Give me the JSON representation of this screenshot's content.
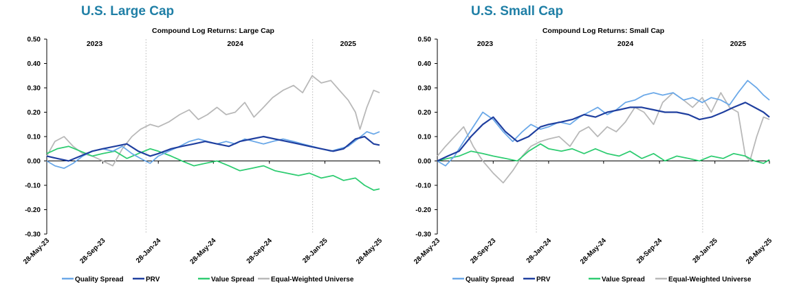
{
  "panels": [
    {
      "heading": "U.S. Large Cap"
    },
    {
      "heading": "U.S. Small Cap"
    }
  ],
  "chart_data": [
    {
      "type": "line",
      "title": "Compound  Log Returns: Large Cap",
      "year_labels": [
        {
          "label": "2023",
          "date": "2023-09-10"
        },
        {
          "label": "2024",
          "date": "2024-07-15"
        },
        {
          "label": "2025",
          "date": "2025-03-20"
        }
      ],
      "year_dividers": [
        "2024-01-01",
        "2025-01-01"
      ],
      "xlim": [
        "2023-05-28",
        "2025-05-28"
      ],
      "x_ticks": [
        "28-May-23",
        "28-Sep-23",
        "28-Jan-24",
        "28-May-24",
        "28-Sep-24",
        "28-Jan-25",
        "28-May-25"
      ],
      "x_tick_dates": [
        "2023-05-28",
        "2023-09-28",
        "2024-01-28",
        "2024-05-28",
        "2024-09-28",
        "2025-01-28",
        "2025-05-28"
      ],
      "ylim": [
        -0.3,
        0.5
      ],
      "y_ticks": [
        "0.50",
        "0.40",
        "0.30",
        "0.20",
        "0.10",
        "0.00",
        "-0.10",
        "-0.20",
        "-0.30"
      ],
      "y_tick_values": [
        0.5,
        0.4,
        0.3,
        0.2,
        0.1,
        0.0,
        -0.1,
        -0.2,
        -0.3
      ],
      "legend_position": "bottom",
      "series": [
        {
          "name": "Quality Spread",
          "color": "#6aa8e8",
          "x": [
            "2023-05-28",
            "2023-06-15",
            "2023-07-05",
            "2023-07-25",
            "2023-08-15",
            "2023-09-05",
            "2023-09-28",
            "2023-10-20",
            "2023-11-10",
            "2023-12-01",
            "2023-12-20",
            "2024-01-10",
            "2024-01-28",
            "2024-02-20",
            "2024-03-15",
            "2024-04-05",
            "2024-04-25",
            "2024-05-15",
            "2024-06-05",
            "2024-06-25",
            "2024-07-15",
            "2024-08-05",
            "2024-08-25",
            "2024-09-15",
            "2024-10-05",
            "2024-10-28",
            "2024-11-20",
            "2024-12-10",
            "2024-12-31",
            "2025-01-20",
            "2025-02-10",
            "2025-03-01",
            "2025-03-20",
            "2025-04-10",
            "2025-04-30",
            "2025-05-15",
            "2025-05-28"
          ],
          "y": [
            0.0,
            -0.02,
            -0.03,
            -0.01,
            0.02,
            0.04,
            0.05,
            0.04,
            0.06,
            0.03,
            0.01,
            -0.01,
            0.02,
            0.04,
            0.06,
            0.08,
            0.09,
            0.08,
            0.07,
            0.08,
            0.07,
            0.09,
            0.08,
            0.07,
            0.08,
            0.09,
            0.08,
            0.07,
            0.06,
            0.05,
            0.04,
            0.05,
            0.06,
            0.09,
            0.12,
            0.11,
            0.12
          ]
        },
        {
          "name": "PRV",
          "color": "#1f3f9f",
          "x": [
            "2023-05-28",
            "2023-06-20",
            "2023-07-15",
            "2023-08-10",
            "2023-09-05",
            "2023-09-28",
            "2023-10-25",
            "2023-11-20",
            "2023-12-15",
            "2024-01-10",
            "2024-01-28",
            "2024-02-25",
            "2024-03-20",
            "2024-04-15",
            "2024-05-10",
            "2024-06-05",
            "2024-07-01",
            "2024-07-25",
            "2024-08-20",
            "2024-09-15",
            "2024-10-10",
            "2024-11-05",
            "2024-12-01",
            "2024-12-25",
            "2025-01-20",
            "2025-02-15",
            "2025-03-10",
            "2025-04-05",
            "2025-04-25",
            "2025-05-15",
            "2025-05-28"
          ],
          "y": [
            0.02,
            0.01,
            0.0,
            0.02,
            0.04,
            0.05,
            0.06,
            0.07,
            0.04,
            0.02,
            0.03,
            0.05,
            0.06,
            0.07,
            0.08,
            0.07,
            0.06,
            0.08,
            0.09,
            0.1,
            0.09,
            0.08,
            0.07,
            0.06,
            0.05,
            0.04,
            0.05,
            0.09,
            0.1,
            0.07,
            0.065
          ]
        },
        {
          "name": "Value Spread",
          "color": "#2ecc71",
          "x": [
            "2023-05-28",
            "2023-06-20",
            "2023-07-15",
            "2023-08-10",
            "2023-09-05",
            "2023-09-28",
            "2023-10-25",
            "2023-11-20",
            "2023-12-15",
            "2024-01-10",
            "2024-01-28",
            "2024-02-25",
            "2024-03-20",
            "2024-04-15",
            "2024-05-10",
            "2024-06-05",
            "2024-07-01",
            "2024-07-25",
            "2024-08-20",
            "2024-09-15",
            "2024-10-10",
            "2024-11-05",
            "2024-12-01",
            "2024-12-25",
            "2025-01-20",
            "2025-02-15",
            "2025-03-10",
            "2025-04-05",
            "2025-04-25",
            "2025-05-15",
            "2025-05-28"
          ],
          "y": [
            0.03,
            0.05,
            0.06,
            0.04,
            0.02,
            0.03,
            0.04,
            0.01,
            0.03,
            0.05,
            0.04,
            0.02,
            0.0,
            -0.02,
            -0.01,
            0.0,
            -0.02,
            -0.04,
            -0.03,
            -0.02,
            -0.04,
            -0.05,
            -0.06,
            -0.05,
            -0.07,
            -0.06,
            -0.08,
            -0.07,
            -0.1,
            -0.12,
            -0.115
          ]
        },
        {
          "name": "Equal-Weighted Universe",
          "color": "#b8b8b8",
          "x": [
            "2023-05-28",
            "2023-06-15",
            "2023-07-05",
            "2023-07-25",
            "2023-08-15",
            "2023-09-05",
            "2023-09-28",
            "2023-10-20",
            "2023-11-10",
            "2023-12-01",
            "2023-12-20",
            "2024-01-10",
            "2024-01-28",
            "2024-02-20",
            "2024-03-15",
            "2024-04-05",
            "2024-04-25",
            "2024-05-15",
            "2024-06-05",
            "2024-06-25",
            "2024-07-15",
            "2024-08-05",
            "2024-08-25",
            "2024-09-15",
            "2024-10-05",
            "2024-10-28",
            "2024-11-20",
            "2024-12-10",
            "2024-12-31",
            "2025-01-20",
            "2025-02-10",
            "2025-03-01",
            "2025-03-20",
            "2025-04-05",
            "2025-04-15",
            "2025-04-30",
            "2025-05-15",
            "2025-05-28"
          ],
          "y": [
            0.02,
            0.08,
            0.1,
            0.06,
            0.03,
            0.02,
            0.0,
            -0.02,
            0.05,
            0.1,
            0.13,
            0.15,
            0.14,
            0.16,
            0.19,
            0.21,
            0.17,
            0.19,
            0.22,
            0.19,
            0.2,
            0.24,
            0.18,
            0.22,
            0.26,
            0.29,
            0.31,
            0.28,
            0.35,
            0.32,
            0.33,
            0.29,
            0.25,
            0.2,
            0.13,
            0.22,
            0.29,
            0.28
          ]
        }
      ]
    },
    {
      "type": "line",
      "title": "Compound  Log Returns: Small Cap",
      "year_labels": [
        {
          "label": "2023",
          "date": "2023-09-10"
        },
        {
          "label": "2024",
          "date": "2024-07-15"
        },
        {
          "label": "2025",
          "date": "2025-03-20"
        }
      ],
      "year_dividers": [
        "2024-01-01",
        "2025-01-01"
      ],
      "xlim": [
        "2023-05-28",
        "2025-05-28"
      ],
      "x_ticks": [
        "28-May-23",
        "28-Sep-23",
        "28-Jan-24",
        "28-May-24",
        "28-Sep-24",
        "28-Jan-25",
        "28-May-25"
      ],
      "x_tick_dates": [
        "2023-05-28",
        "2023-09-28",
        "2024-01-28",
        "2024-05-28",
        "2024-09-28",
        "2025-01-28",
        "2025-05-28"
      ],
      "ylim": [
        -0.3,
        0.5
      ],
      "y_ticks": [
        "0.50",
        "0.40",
        "0.30",
        "0.20",
        "0.10",
        "0.00",
        "-0.10",
        "-0.20",
        "-0.30"
      ],
      "y_tick_values": [
        0.5,
        0.4,
        0.3,
        0.2,
        0.1,
        0.0,
        -0.1,
        -0.2,
        -0.3
      ],
      "legend_position": "bottom",
      "series": [
        {
          "name": "Quality Spread",
          "color": "#6aa8e8",
          "x": [
            "2023-05-28",
            "2023-06-15",
            "2023-07-05",
            "2023-07-25",
            "2023-08-15",
            "2023-09-05",
            "2023-09-28",
            "2023-10-20",
            "2023-11-10",
            "2023-12-01",
            "2023-12-20",
            "2024-01-10",
            "2024-01-28",
            "2024-02-20",
            "2024-03-15",
            "2024-04-05",
            "2024-04-25",
            "2024-05-15",
            "2024-06-05",
            "2024-06-25",
            "2024-07-15",
            "2024-08-05",
            "2024-08-25",
            "2024-09-15",
            "2024-10-05",
            "2024-10-28",
            "2024-11-20",
            "2024-12-10",
            "2024-12-31",
            "2025-01-20",
            "2025-02-10",
            "2025-03-01",
            "2025-03-20",
            "2025-04-10",
            "2025-04-30",
            "2025-05-15",
            "2025-05-28"
          ],
          "y": [
            0.0,
            -0.02,
            0.02,
            0.08,
            0.14,
            0.2,
            0.17,
            0.12,
            0.08,
            0.12,
            0.15,
            0.13,
            0.14,
            0.16,
            0.15,
            0.18,
            0.2,
            0.22,
            0.19,
            0.21,
            0.24,
            0.25,
            0.27,
            0.28,
            0.27,
            0.28,
            0.25,
            0.26,
            0.24,
            0.26,
            0.25,
            0.23,
            0.28,
            0.33,
            0.3,
            0.27,
            0.25
          ]
        },
        {
          "name": "PRV",
          "color": "#1f3f9f",
          "x": [
            "2023-05-28",
            "2023-06-20",
            "2023-07-15",
            "2023-08-10",
            "2023-09-05",
            "2023-09-28",
            "2023-10-25",
            "2023-11-20",
            "2023-12-15",
            "2024-01-10",
            "2024-01-28",
            "2024-02-25",
            "2024-03-20",
            "2024-04-15",
            "2024-05-10",
            "2024-06-05",
            "2024-07-01",
            "2024-07-25",
            "2024-08-20",
            "2024-09-15",
            "2024-10-10",
            "2024-11-05",
            "2024-12-01",
            "2024-12-25",
            "2025-01-20",
            "2025-02-15",
            "2025-03-10",
            "2025-04-05",
            "2025-04-25",
            "2025-05-15",
            "2025-05-28"
          ],
          "y": [
            0.0,
            0.02,
            0.04,
            0.1,
            0.15,
            0.18,
            0.12,
            0.08,
            0.1,
            0.14,
            0.15,
            0.16,
            0.17,
            0.19,
            0.18,
            0.2,
            0.21,
            0.22,
            0.22,
            0.21,
            0.2,
            0.2,
            0.19,
            0.17,
            0.18,
            0.2,
            0.22,
            0.24,
            0.22,
            0.2,
            0.18
          ]
        },
        {
          "name": "Value Spread",
          "color": "#2ecc71",
          "x": [
            "2023-05-28",
            "2023-06-20",
            "2023-07-15",
            "2023-08-10",
            "2023-09-05",
            "2023-09-28",
            "2023-10-25",
            "2023-11-20",
            "2023-12-15",
            "2024-01-10",
            "2024-01-28",
            "2024-02-25",
            "2024-03-20",
            "2024-04-15",
            "2024-05-10",
            "2024-06-05",
            "2024-07-01",
            "2024-07-25",
            "2024-08-20",
            "2024-09-15",
            "2024-10-10",
            "2024-11-05",
            "2024-12-01",
            "2024-12-25",
            "2025-01-20",
            "2025-02-15",
            "2025-03-10",
            "2025-04-05",
            "2025-04-25",
            "2025-05-15",
            "2025-05-28"
          ],
          "y": [
            0.0,
            0.01,
            0.02,
            0.04,
            0.03,
            0.02,
            0.01,
            0.0,
            0.04,
            0.07,
            0.05,
            0.04,
            0.05,
            0.03,
            0.05,
            0.03,
            0.02,
            0.04,
            0.01,
            0.03,
            0.0,
            0.02,
            0.01,
            0.0,
            0.02,
            0.01,
            0.03,
            0.02,
            0.0,
            -0.01,
            0.005
          ]
        },
        {
          "name": "Equal-Weighted Universe",
          "color": "#b8b8b8",
          "x": [
            "2023-05-28",
            "2023-06-15",
            "2023-07-05",
            "2023-07-25",
            "2023-08-15",
            "2023-09-05",
            "2023-09-28",
            "2023-10-20",
            "2023-11-10",
            "2023-12-01",
            "2023-12-20",
            "2024-01-10",
            "2024-01-28",
            "2024-02-20",
            "2024-03-15",
            "2024-04-05",
            "2024-04-25",
            "2024-05-15",
            "2024-06-05",
            "2024-06-25",
            "2024-07-15",
            "2024-08-05",
            "2024-08-25",
            "2024-09-15",
            "2024-10-05",
            "2024-10-28",
            "2024-11-20",
            "2024-12-10",
            "2024-12-31",
            "2025-01-20",
            "2025-02-10",
            "2025-03-01",
            "2025-03-20",
            "2025-04-05",
            "2025-04-15",
            "2025-04-30",
            "2025-05-15",
            "2025-05-28"
          ],
          "y": [
            0.02,
            0.06,
            0.1,
            0.14,
            0.06,
            0.0,
            -0.05,
            -0.09,
            -0.04,
            0.02,
            0.06,
            0.08,
            0.09,
            0.1,
            0.06,
            0.12,
            0.14,
            0.1,
            0.14,
            0.12,
            0.16,
            0.22,
            0.2,
            0.15,
            0.24,
            0.28,
            0.25,
            0.22,
            0.26,
            0.2,
            0.28,
            0.22,
            0.2,
            0.02,
            0.0,
            0.1,
            0.18,
            0.17
          ]
        }
      ]
    }
  ]
}
